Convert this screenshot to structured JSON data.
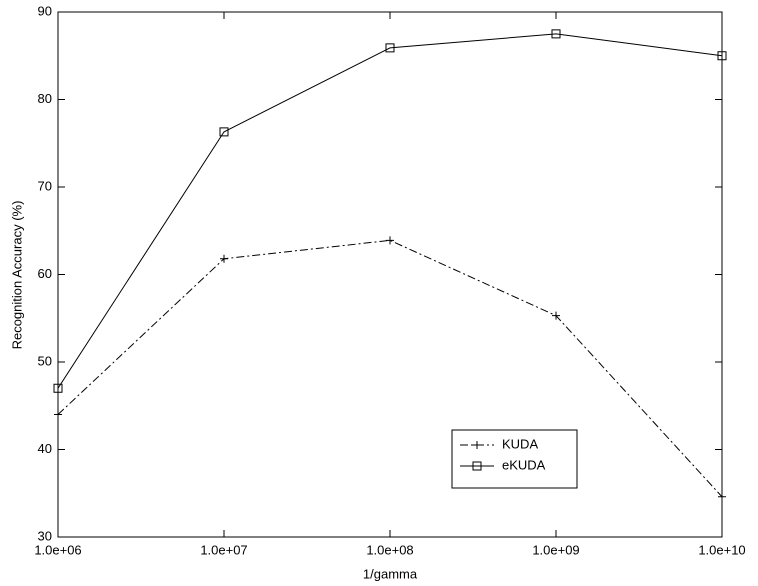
{
  "chart_data": {
    "type": "line",
    "x_label": "1/gamma",
    "y_label": "Recognition Accuracy (%)",
    "x": [
      1000000,
      10000000,
      100000000,
      1000000000,
      10000000000
    ],
    "xscale": "log",
    "xlim": [
      1000000,
      10000000000
    ],
    "xticks": [
      {
        "value": 1000000,
        "label": "1.0e+06"
      },
      {
        "value": 10000000,
        "label": "1.0e+07"
      },
      {
        "value": 100000000,
        "label": "1.0e+08"
      },
      {
        "value": 1000000000,
        "label": "1.0e+09"
      },
      {
        "value": 10000000000,
        "label": "1.0e+10"
      }
    ],
    "ylim": [
      30,
      90
    ],
    "yticks": [
      30,
      40,
      50,
      60,
      70,
      80,
      90
    ],
    "grid": false,
    "legend": "lower right",
    "series": [
      {
        "name": "KUDA",
        "color": "#000000",
        "line_style": "dashdot",
        "marker": "plus",
        "values": [
          44,
          61.8,
          63.9,
          55.3,
          34.6
        ]
      },
      {
        "name": "eKUDA",
        "color": "#000000",
        "line_style": "solid",
        "marker": "square",
        "values": [
          47,
          76.3,
          85.9,
          87.5,
          85
        ]
      }
    ]
  }
}
